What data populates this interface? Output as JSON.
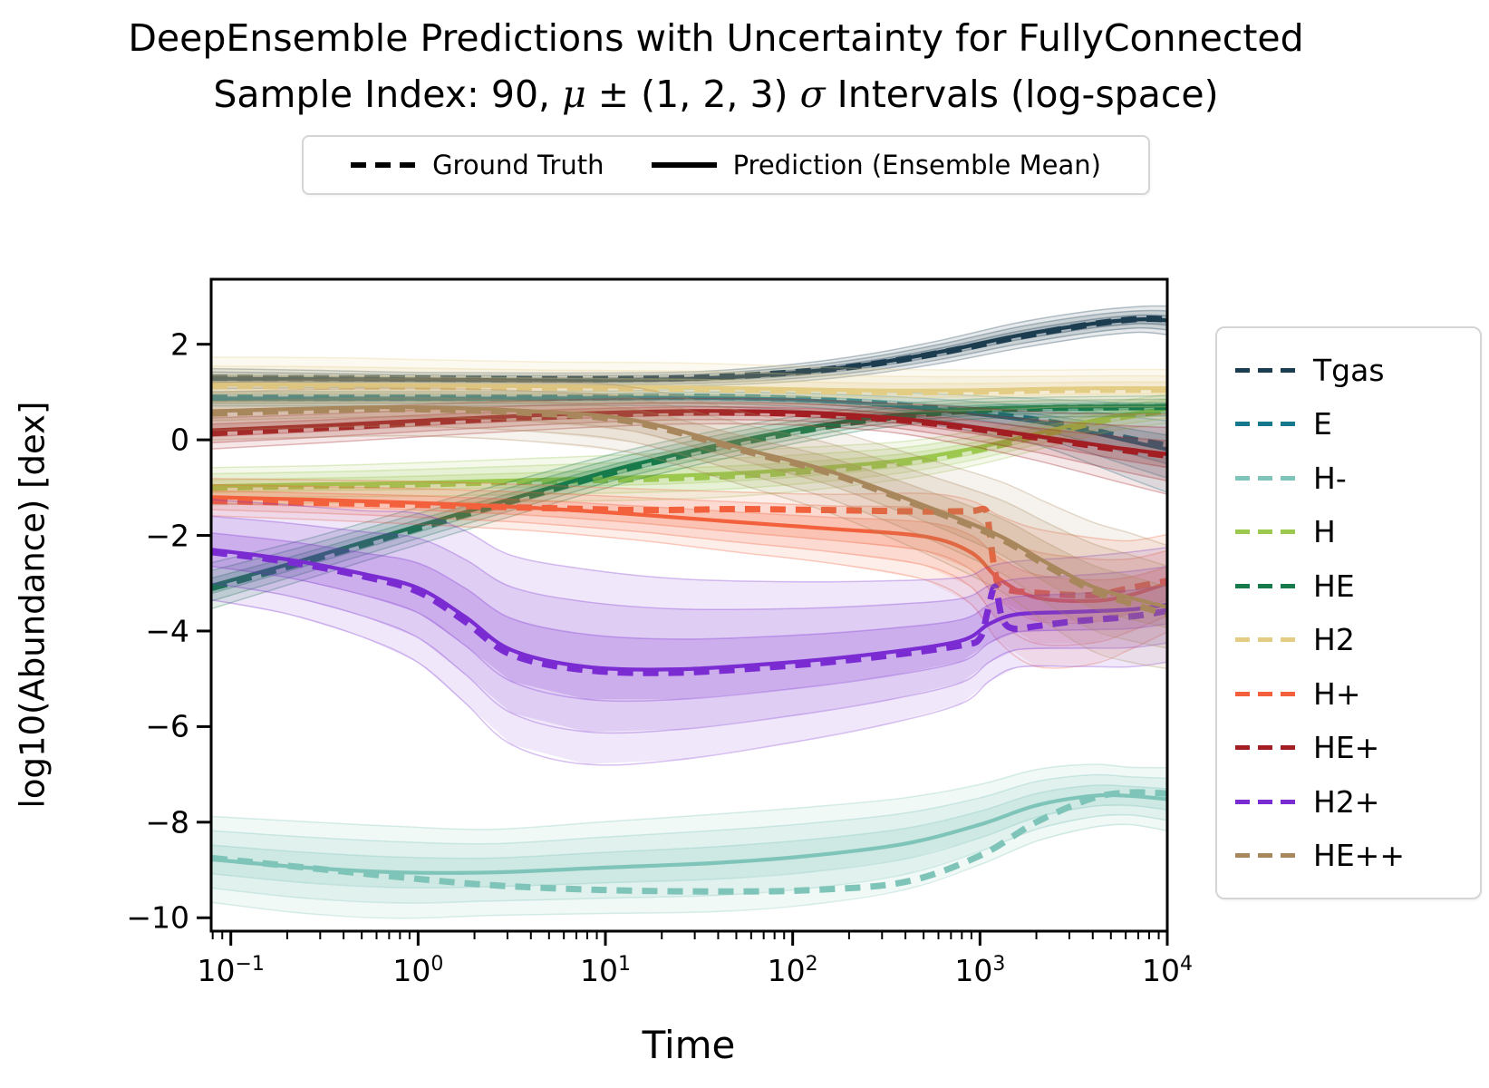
{
  "title": {
    "line1": "DeepEnsemble Predictions with Uncertainty for FullyConnected",
    "line2": "Sample Index: 90,  μ ± (1, 2, 3) σ Intervals (log-space)"
  },
  "legend_top": {
    "items": [
      {
        "label": "Ground Truth",
        "style": "dashed"
      },
      {
        "label": "Prediction (Ensemble Mean)",
        "style": "solid"
      }
    ]
  },
  "chart_data": {
    "type": "line",
    "xscale": "log",
    "xlabel": "Time",
    "ylabel": "log10(Abundance) [dex]",
    "xlim_log10": [
      -1.105,
      4.0
    ],
    "ylim": [
      -10.28,
      3.36
    ],
    "xtick_exponents": [
      -1,
      0,
      1,
      2,
      3,
      4
    ],
    "yticks": [
      2,
      0,
      -2,
      -4,
      -6,
      -8,
      -10
    ],
    "grid": false,
    "legend_position": "right",
    "band_meaning": "mu ± (1,2,3) sigma",
    "series": [
      {
        "name": "Tgas",
        "color": "#1c3c50",
        "x": [
          -1.1,
          -0.5,
          0,
          0.5,
          1,
          1.5,
          2,
          2.4,
          2.8,
          3.2,
          3.6,
          3.85,
          4.0
        ],
        "pred": [
          1.28,
          1.27,
          1.26,
          1.25,
          1.25,
          1.28,
          1.4,
          1.58,
          1.85,
          2.18,
          2.43,
          2.52,
          2.5
        ],
        "gt_x": [
          -1.1,
          -0.5,
          0,
          0.5,
          1,
          1.5,
          2,
          2.4,
          2.8,
          3.2,
          3.6,
          3.85,
          4.0
        ],
        "gt": [
          1.3,
          1.29,
          1.28,
          1.27,
          1.27,
          1.3,
          1.41,
          1.57,
          1.83,
          2.15,
          2.42,
          2.53,
          2.52
        ],
        "sigma": [
          0.07,
          0.06,
          0.05,
          0.05,
          0.05,
          0.05,
          0.06,
          0.07,
          0.08,
          0.09,
          0.09,
          0.09,
          0.1
        ]
      },
      {
        "name": "E",
        "color": "#15788c",
        "x": [
          -1.1,
          -0.5,
          0,
          0.5,
          1,
          1.5,
          2,
          2.5,
          2.9,
          3.3,
          3.6,
          3.8,
          4.0
        ],
        "pred": [
          0.86,
          0.86,
          0.86,
          0.86,
          0.87,
          0.88,
          0.84,
          0.73,
          0.58,
          0.38,
          0.15,
          -0.03,
          -0.2
        ],
        "gt_x": [
          -1.1,
          -0.5,
          0,
          0.5,
          1,
          1.5,
          2,
          2.5,
          2.9,
          3.3,
          3.6,
          3.8,
          4.0
        ],
        "gt": [
          0.88,
          0.88,
          0.88,
          0.88,
          0.89,
          0.9,
          0.86,
          0.75,
          0.6,
          0.42,
          0.2,
          0.02,
          -0.12
        ],
        "sigma": [
          0.05,
          0.05,
          0.05,
          0.05,
          0.05,
          0.06,
          0.07,
          0.09,
          0.12,
          0.16,
          0.22,
          0.26,
          0.3
        ]
      },
      {
        "name": "H-",
        "color": "#7fc4b8",
        "x": [
          -1.1,
          -0.6,
          -0.1,
          0.4,
          1.0,
          1.6,
          2.1,
          2.6,
          3.0,
          3.3,
          3.6,
          3.8,
          4.0
        ],
        "pred": [
          -8.78,
          -8.95,
          -9.05,
          -9.05,
          -8.95,
          -8.85,
          -8.7,
          -8.45,
          -8.05,
          -7.65,
          -7.45,
          -7.45,
          -7.52
        ],
        "gt_x": [
          -1.1,
          -0.6,
          -0.1,
          0.4,
          1.0,
          1.6,
          2.1,
          2.6,
          3.0,
          3.3,
          3.6,
          3.8,
          4.0
        ],
        "gt": [
          -8.75,
          -8.95,
          -9.15,
          -9.32,
          -9.42,
          -9.45,
          -9.42,
          -9.25,
          -8.7,
          -8.0,
          -7.5,
          -7.38,
          -7.4
        ],
        "sigma": [
          0.3,
          0.32,
          0.32,
          0.3,
          0.32,
          0.34,
          0.34,
          0.32,
          0.28,
          0.25,
          0.22,
          0.2,
          0.22
        ]
      },
      {
        "name": "H",
        "color": "#9cc84e",
        "x": [
          -1.1,
          -0.5,
          0,
          0.6,
          1.2,
          1.7,
          2.1,
          2.6,
          3.0,
          3.4,
          3.7,
          4.0
        ],
        "pred": [
          -0.97,
          -0.93,
          -0.9,
          -0.84,
          -0.78,
          -0.7,
          -0.6,
          -0.42,
          -0.15,
          0.22,
          0.48,
          0.65
        ],
        "gt_x": [
          -1.1,
          -0.5,
          0,
          0.6,
          1.2,
          1.7,
          2.1,
          2.6,
          3.0,
          3.4,
          3.7,
          4.0
        ],
        "gt": [
          -1.0,
          -0.96,
          -0.93,
          -0.87,
          -0.82,
          -0.75,
          -0.65,
          -0.47,
          -0.2,
          0.17,
          0.44,
          0.62
        ],
        "sigma": [
          0.13,
          0.13,
          0.14,
          0.15,
          0.16,
          0.16,
          0.15,
          0.13,
          0.12,
          0.11,
          0.1,
          0.1
        ]
      },
      {
        "name": "HE",
        "color": "#177a4b",
        "x": [
          -1.1,
          -0.6,
          0,
          0.6,
          1.15,
          1.8,
          2.4,
          2.9,
          3.3,
          3.7,
          4.0
        ],
        "pred": [
          -3.05,
          -2.5,
          -1.8,
          -1.12,
          -0.52,
          0.05,
          0.45,
          0.63,
          0.68,
          0.7,
          0.71
        ],
        "gt_x": [
          -1.1,
          -0.6,
          0,
          0.6,
          1.15,
          1.8,
          2.4,
          2.9,
          3.3,
          3.7,
          4.0
        ],
        "gt": [
          -3.1,
          -2.55,
          -1.85,
          -1.17,
          -0.57,
          0.0,
          0.41,
          0.6,
          0.66,
          0.68,
          0.69
        ],
        "sigma": [
          0.16,
          0.14,
          0.13,
          0.12,
          0.11,
          0.1,
          0.08,
          0.07,
          0.07,
          0.07,
          0.07
        ]
      },
      {
        "name": "H2",
        "color": "#e3cc84",
        "x": [
          -1.1,
          -0.5,
          0,
          0.7,
          1.4,
          2,
          2.5,
          3,
          3.4,
          3.7,
          4.0
        ],
        "pred": [
          1.16,
          1.15,
          1.14,
          1.12,
          1.1,
          1.06,
          1.03,
          1.04,
          1.07,
          1.08,
          1.08
        ],
        "gt_x": [
          -1.1,
          -0.5,
          0,
          0.7,
          1.4,
          2,
          2.5,
          3,
          3.4,
          3.7,
          4.0
        ],
        "gt": [
          1.13,
          1.12,
          1.11,
          1.09,
          1.07,
          1.03,
          1.0,
          1.01,
          1.04,
          1.05,
          1.05
        ],
        "sigma": [
          0.19,
          0.19,
          0.18,
          0.17,
          0.17,
          0.16,
          0.15,
          0.14,
          0.13,
          0.13,
          0.13
        ]
      },
      {
        "name": "H+",
        "color": "#f2603c",
        "x": [
          -1.1,
          -0.5,
          0,
          0.6,
          1.2,
          1.7,
          2.2,
          2.7,
          2.95,
          3.1,
          3.3,
          3.6,
          3.8,
          4.0
        ],
        "pred": [
          -1.2,
          -1.26,
          -1.32,
          -1.42,
          -1.57,
          -1.72,
          -1.86,
          -2.02,
          -2.35,
          -2.9,
          -3.3,
          -3.37,
          -3.25,
          -3.0
        ],
        "gt_x": [
          -1.1,
          -0.5,
          0,
          0.6,
          1.2,
          1.7,
          2.2,
          2.7,
          2.95,
          3.03,
          3.05,
          3.08,
          3.12,
          3.3,
          3.6,
          3.8,
          4.0
        ],
        "gt": [
          -1.28,
          -1.32,
          -1.36,
          -1.42,
          -1.47,
          -1.45,
          -1.47,
          -1.5,
          -1.49,
          -1.47,
          -1.9,
          -2.75,
          -3.1,
          -3.2,
          -3.25,
          -3.1,
          -2.95
        ],
        "sigma": [
          0.13,
          0.14,
          0.15,
          0.16,
          0.18,
          0.21,
          0.24,
          0.3,
          0.36,
          0.44,
          0.48,
          0.44,
          0.38,
          0.34
        ]
      },
      {
        "name": "HE+",
        "color": "#a31e23",
        "x": [
          -1.1,
          -0.5,
          0.2,
          0.8,
          1.4,
          2.0,
          2.5,
          2.9,
          3.3,
          3.7,
          4.0
        ],
        "pred": [
          0.2,
          0.3,
          0.44,
          0.54,
          0.6,
          0.58,
          0.47,
          0.3,
          0.08,
          -0.15,
          -0.3
        ],
        "gt_x": [
          -1.1,
          -0.5,
          0.2,
          0.8,
          1.4,
          2.0,
          2.5,
          2.9,
          3.3,
          3.7,
          4.0
        ],
        "gt": [
          0.14,
          0.25,
          0.4,
          0.5,
          0.57,
          0.55,
          0.44,
          0.27,
          0.05,
          -0.18,
          -0.33
        ],
        "sigma": [
          0.13,
          0.12,
          0.11,
          0.1,
          0.09,
          0.09,
          0.1,
          0.13,
          0.17,
          0.23,
          0.28
        ]
      },
      {
        "name": "H2+",
        "color": "#7a2bd1",
        "x": [
          -1.1,
          -0.7,
          -0.3,
          0.0,
          0.25,
          0.5,
          0.9,
          1.4,
          2.0,
          2.5,
          2.9,
          3.05,
          3.2,
          3.5,
          3.8,
          4.0
        ],
        "pred": [
          -2.3,
          -2.5,
          -2.8,
          -3.1,
          -3.7,
          -4.4,
          -4.75,
          -4.8,
          -4.65,
          -4.45,
          -4.2,
          -3.85,
          -3.65,
          -3.6,
          -3.55,
          -3.45
        ],
        "gt_x": [
          -1.1,
          -0.7,
          -0.3,
          0.0,
          0.25,
          0.5,
          0.9,
          1.4,
          2.0,
          2.5,
          2.9,
          3.0,
          3.04,
          3.08,
          3.12,
          3.18,
          3.3,
          3.5,
          3.8,
          4.0
        ],
        "gt": [
          -2.35,
          -2.55,
          -2.85,
          -3.18,
          -3.8,
          -4.5,
          -4.82,
          -4.87,
          -4.72,
          -4.52,
          -4.3,
          -4.15,
          -3.6,
          -3.08,
          -3.75,
          -3.95,
          -3.9,
          -3.8,
          -3.7,
          -3.58
        ],
        "sigma": [
          0.35,
          0.38,
          0.44,
          0.52,
          0.6,
          0.66,
          0.68,
          0.63,
          0.56,
          0.5,
          0.44,
          0.4,
          0.37,
          0.38,
          0.4,
          0.4
        ]
      },
      {
        "name": "HE++",
        "color": "#a9875c",
        "x": [
          -1.1,
          -0.5,
          0,
          0.6,
          1.15,
          1.8,
          2.2,
          2.7,
          3.1,
          3.35,
          3.6,
          3.8,
          4.0
        ],
        "pred": [
          0.6,
          0.66,
          0.68,
          0.6,
          0.41,
          -0.25,
          -0.66,
          -1.37,
          -2.0,
          -2.56,
          -3.07,
          -3.3,
          -3.5
        ],
        "gt_x": [
          -1.1,
          -0.5,
          0,
          0.6,
          1.15,
          1.8,
          2.2,
          2.7,
          3.1,
          3.35,
          3.6,
          3.8,
          4.0
        ],
        "gt": [
          0.55,
          0.62,
          0.64,
          0.56,
          0.37,
          -0.29,
          -0.7,
          -1.41,
          -2.05,
          -2.62,
          -3.15,
          -3.42,
          -3.65
        ],
        "sigma": [
          0.2,
          0.2,
          0.2,
          0.21,
          0.23,
          0.26,
          0.29,
          0.33,
          0.38,
          0.42,
          0.45,
          0.45,
          0.43
        ]
      }
    ]
  }
}
